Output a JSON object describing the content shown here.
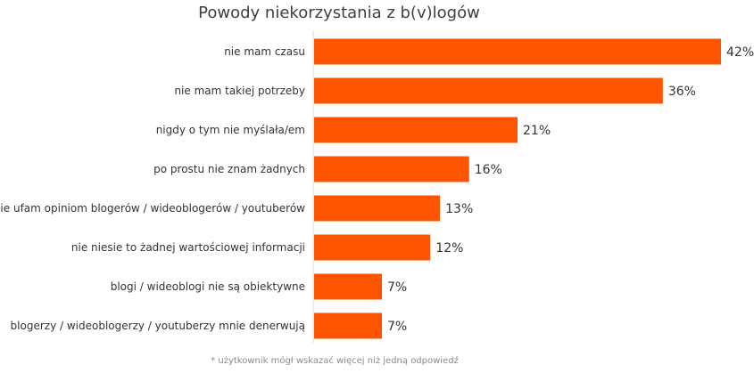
{
  "chart_data": {
    "type": "bar",
    "orientation": "horizontal",
    "title": "Powody niekorzystania z b(v)logów",
    "categories": [
      "nie mam czasu",
      "nie mam takiej potrzeby",
      "nigdy o tym nie myślała/em",
      "po prostu nie znam żadnych",
      "nie ufam opiniom blogerów / wideoblogerów / youtuberów",
      "nie niesie to żadnej wartościowej informacji",
      "blogi / wideoblogi nie są obiektywne",
      "blogerzy / wideoblogerzy / youtuberzy mnie denerwują"
    ],
    "values": [
      42,
      36,
      21,
      16,
      13,
      12,
      7,
      7
    ],
    "value_labels": [
      "42%",
      "36%",
      "21%",
      "16%",
      "13%",
      "12%",
      "7%",
      "7%"
    ],
    "unit": "%",
    "xlim": [
      0,
      42
    ],
    "grid": false,
    "bar_color": "#FF5500",
    "footnote": "* użytkownik mógł wskazać więcej niż jedną odpowiedź"
  }
}
